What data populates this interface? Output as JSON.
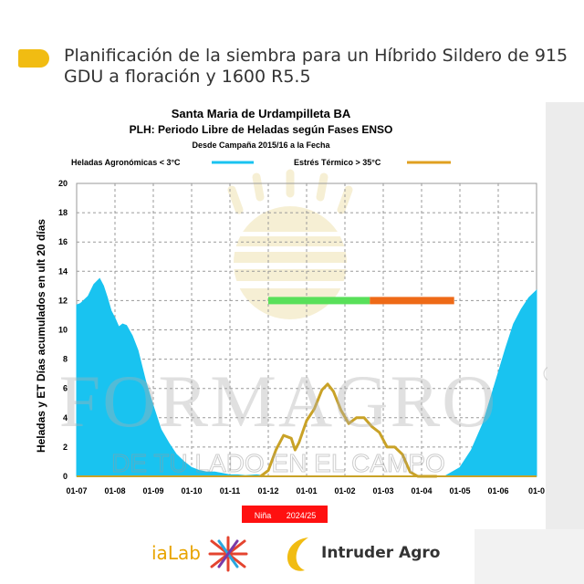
{
  "header": {
    "title": "Planificación de la siembra para un Híbrido Sildero de 915 GDU a floración y 1600 R5.5"
  },
  "watermark": {
    "brand": "FORMAGRO",
    "registered": "®",
    "tagline": "DE TU LADO EN EL CAMPO"
  },
  "footer": {
    "logo_left": "iaLab",
    "logo_right": "Intruder Agro"
  },
  "colors": {
    "frost": "#19c3f0",
    "heat": "#c9a227",
    "green_bar": "#59e05a",
    "orange_bar": "#ee6a17",
    "badge": "#ff1010",
    "accent": "#f1bc12"
  },
  "chart_data": {
    "type": "area",
    "title": "Santa Maria de Urdampilleta BA",
    "subtitle": "PLH: Periodo Libre de Heladas según Fases ENSO",
    "subsubtitle": "Desde Campaña 2015/16 a la Fecha",
    "ylabel": "Heladas y ET  Días acumulados en ult 20 días",
    "xlabel": "",
    "ylim": [
      0,
      20
    ],
    "yticks": [
      "0",
      "2",
      "4",
      "6",
      "8",
      "10",
      "12",
      "14",
      "16",
      "18",
      "20"
    ],
    "xticks": [
      "01-07",
      "01-08",
      "01-09",
      "01-10",
      "01-11",
      "01-12",
      "01-01",
      "01-02",
      "01-03",
      "01-04",
      "01-05",
      "01-06",
      "01-0"
    ],
    "legend": {
      "frost_label": "Heladas Agronómicas < 3°C",
      "heat_label": "Estrés Térmico > 35°C",
      "placement": "top"
    },
    "badge": {
      "phase": "Niña",
      "season": "2024/25"
    },
    "series": [
      {
        "name": "Heladas Agronómicas < 3°C",
        "kind": "area",
        "x": [
          0,
          0.1,
          0.3,
          0.45,
          0.6,
          0.7,
          0.8,
          0.9,
          1.0,
          1.1,
          1.2,
          1.3,
          1.45,
          1.6,
          1.8,
          2.0,
          2.2,
          2.4,
          2.6,
          2.8,
          3.0,
          3.2,
          3.4,
          3.6,
          3.8,
          4.0,
          4.2,
          4.4,
          4.7,
          5.0,
          9.6,
          10.0,
          10.3,
          10.6,
          10.9,
          11.2,
          11.4,
          11.6,
          11.8,
          12.0
        ],
        "values": [
          11.7,
          11.8,
          12.3,
          13.1,
          13.5,
          13.0,
          12.2,
          11.3,
          10.8,
          10.2,
          10.4,
          10.3,
          9.6,
          8.6,
          6.5,
          4.8,
          3.2,
          2.3,
          1.5,
          1.0,
          0.6,
          0.4,
          0.3,
          0.3,
          0.2,
          0.1,
          0.1,
          0.05,
          0.1,
          0.0,
          0.0,
          0.6,
          1.8,
          3.6,
          6.2,
          8.8,
          10.4,
          11.4,
          12.2,
          12.7
        ]
      },
      {
        "name": "Estrés Térmico > 35°C",
        "kind": "line",
        "x": [
          4.8,
          5.0,
          5.2,
          5.4,
          5.6,
          5.7,
          5.8,
          6.0,
          6.2,
          6.4,
          6.55,
          6.7,
          6.9,
          7.1,
          7.3,
          7.5,
          7.7,
          7.9,
          8.1,
          8.3,
          8.5,
          8.7,
          8.9,
          9.1,
          9.4
        ],
        "values": [
          0.0,
          0.4,
          1.8,
          2.8,
          2.6,
          1.8,
          2.3,
          3.8,
          4.6,
          5.9,
          6.3,
          5.8,
          4.5,
          3.6,
          4.0,
          4.0,
          3.4,
          3.0,
          2.0,
          2.0,
          1.5,
          0.3,
          0.0,
          0.0,
          0.0
        ]
      }
    ],
    "bars": [
      {
        "name": "green",
        "x_start": 5.0,
        "x_end": 7.65,
        "y": 12
      },
      {
        "name": "orange",
        "x_start": 7.65,
        "x_end": 9.85,
        "y": 12
      }
    ]
  }
}
